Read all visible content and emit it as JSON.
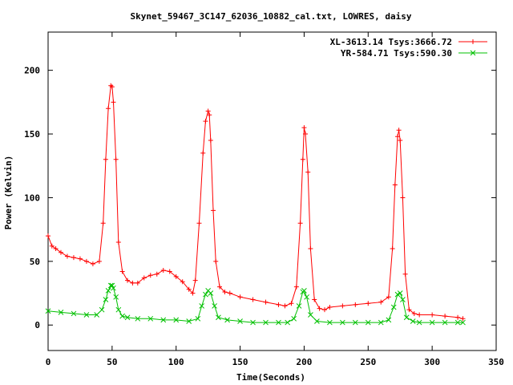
{
  "chart_data": {
    "type": "line",
    "title": "Skynet_59467_3C147_62036_10882_cal.txt, LOWRES, daisy",
    "xlabel": "Time(Seconds)",
    "ylabel": "Power (Kelvin)",
    "xlim": [
      0,
      350
    ],
    "ylim": [
      -20,
      230
    ],
    "xticks": [
      0,
      50,
      100,
      150,
      200,
      250,
      300,
      350
    ],
    "yticks": [
      0,
      50,
      100,
      150,
      200
    ],
    "grid": false,
    "legend_position": "top-right",
    "series": [
      {
        "name": "XL-3613.14 Tsys:3666.72",
        "color": "#ff0000",
        "marker": "plus",
        "x": [
          0,
          3,
          6,
          10,
          15,
          20,
          25,
          30,
          35,
          40,
          43,
          45,
          47,
          49,
          50,
          51,
          53,
          55,
          58,
          62,
          66,
          70,
          75,
          80,
          85,
          90,
          95,
          100,
          105,
          110,
          113,
          115,
          118,
          121,
          123,
          125,
          126,
          127,
          129,
          131,
          134,
          138,
          142,
          150,
          160,
          170,
          180,
          185,
          190,
          194,
          197,
          199,
          200,
          201,
          203,
          205,
          208,
          212,
          216,
          220,
          230,
          240,
          250,
          260,
          266,
          269,
          271,
          273,
          274,
          275,
          277,
          279,
          282,
          286,
          290,
          300,
          310,
          320,
          324
        ],
        "values": [
          70,
          62,
          60,
          57,
          54,
          53,
          52,
          50,
          48,
          50,
          80,
          130,
          170,
          188,
          187,
          175,
          130,
          65,
          42,
          35,
          33,
          33,
          37,
          39,
          40,
          43,
          42,
          38,
          34,
          28,
          25,
          35,
          80,
          135,
          160,
          168,
          165,
          145,
          90,
          50,
          30,
          26,
          25,
          22,
          20,
          18,
          16,
          15,
          17,
          30,
          80,
          130,
          155,
          150,
          120,
          60,
          20,
          13,
          12,
          14,
          15,
          16,
          17,
          18,
          22,
          60,
          110,
          148,
          153,
          145,
          100,
          40,
          12,
          9,
          8,
          8,
          7,
          6,
          5
        ]
      },
      {
        "name": "YR-584.71 Tsys:590.30",
        "color": "#00c000",
        "marker": "cross",
        "x": [
          0,
          10,
          20,
          30,
          38,
          42,
          45,
          47,
          49,
          50,
          51,
          53,
          55,
          58,
          62,
          70,
          80,
          90,
          100,
          110,
          117,
          120,
          123,
          125,
          127,
          130,
          133,
          140,
          150,
          160,
          170,
          180,
          187,
          192,
          196,
          199,
          200,
          202,
          205,
          210,
          220,
          230,
          240,
          250,
          260,
          266,
          270,
          273,
          275,
          277,
          280,
          285,
          290,
          300,
          310,
          320,
          324
        ],
        "values": [
          11,
          10,
          9,
          8,
          8,
          12,
          20,
          27,
          31,
          31,
          29,
          22,
          12,
          7,
          6,
          5,
          5,
          4,
          4,
          3,
          5,
          15,
          24,
          27,
          25,
          15,
          6,
          4,
          3,
          2,
          2,
          2,
          2,
          5,
          15,
          26,
          27,
          22,
          8,
          3,
          2,
          2,
          2,
          2,
          2,
          4,
          14,
          24,
          25,
          20,
          6,
          3,
          2,
          2,
          2,
          2,
          2
        ]
      }
    ]
  }
}
